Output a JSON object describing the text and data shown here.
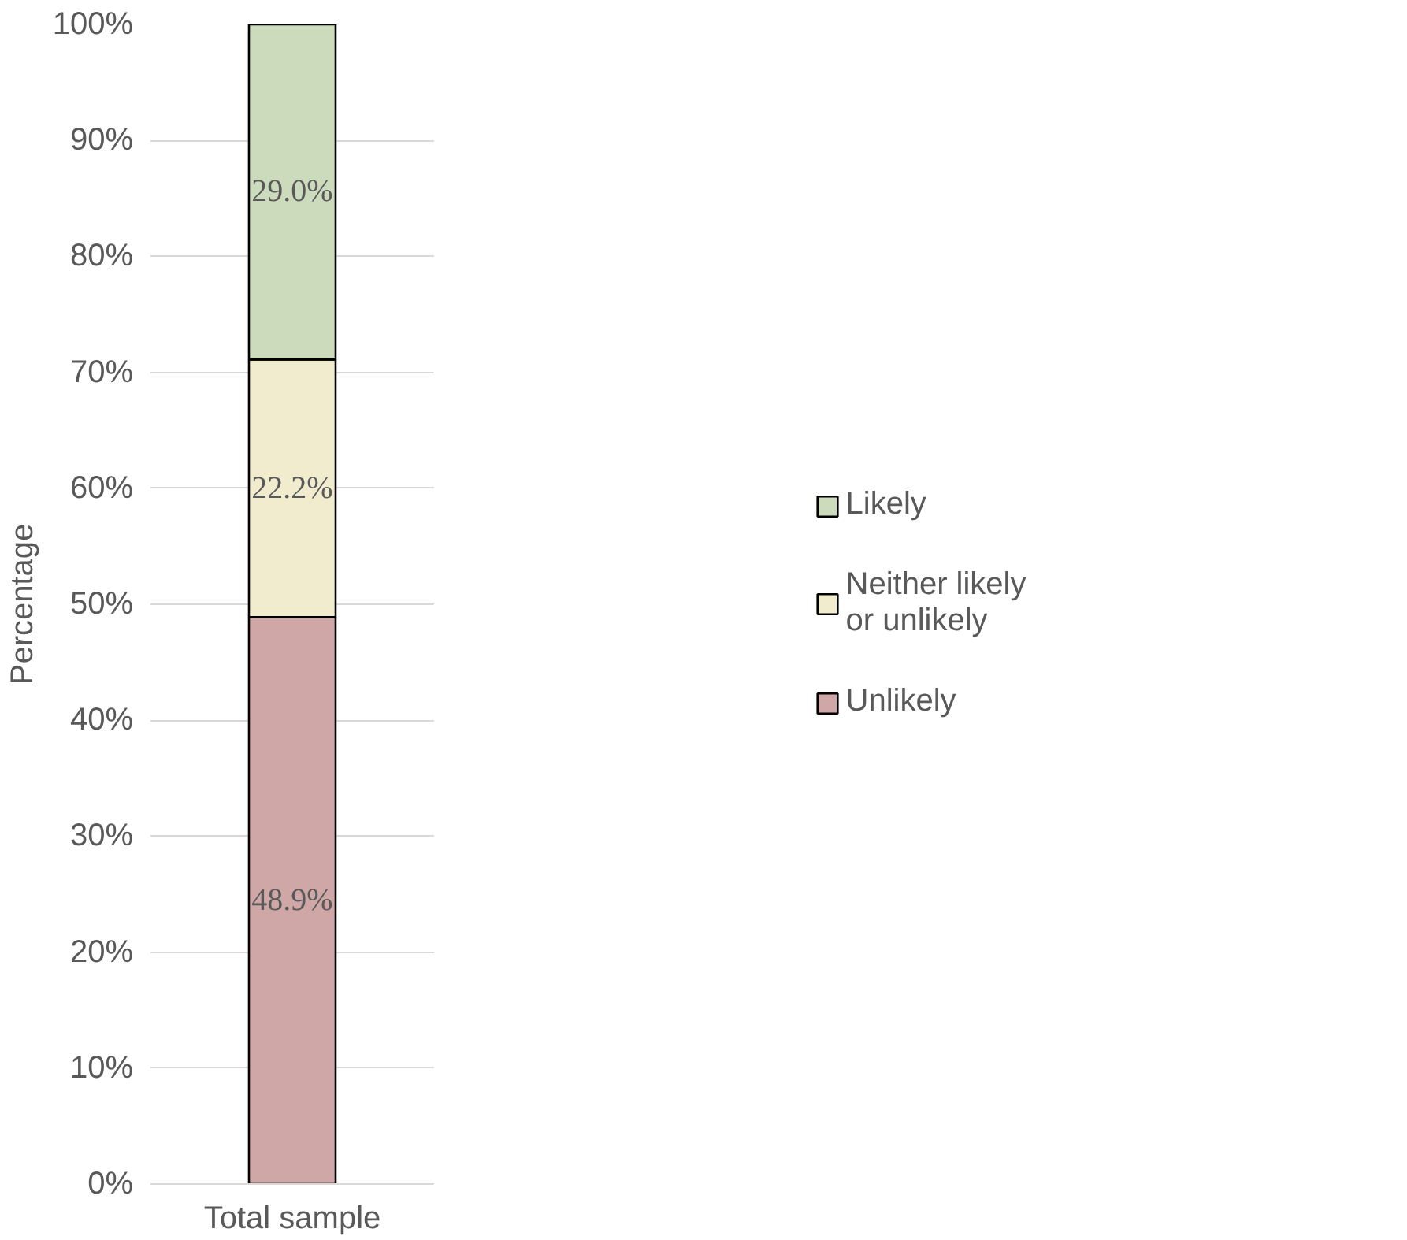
{
  "chart_data": {
    "type": "bar",
    "stacked": true,
    "ylabel": "Percentage",
    "categories": [
      "Total sample"
    ],
    "series": [
      {
        "name": "Unlikely",
        "color": "#d0a7a7",
        "values": [
          48.9
        ],
        "value_labels": [
          "48.9%"
        ]
      },
      {
        "name": "Neither likely or unlikely",
        "color": "#f2ecce",
        "values": [
          22.2
        ],
        "value_labels": [
          "22.2%"
        ]
      },
      {
        "name": "Likely",
        "color": "#cddbbd",
        "values": [
          29.0
        ],
        "value_labels": [
          "29.0%"
        ]
      }
    ],
    "ylim": [
      0,
      100
    ],
    "yticks": [
      {
        "value": 0,
        "label": "0%"
      },
      {
        "value": 10,
        "label": "10%"
      },
      {
        "value": 20,
        "label": "20%"
      },
      {
        "value": 30,
        "label": "30%"
      },
      {
        "value": 40,
        "label": "40%"
      },
      {
        "value": 50,
        "label": "50%"
      },
      {
        "value": 60,
        "label": "60%"
      },
      {
        "value": 70,
        "label": "70%"
      },
      {
        "value": 80,
        "label": "80%"
      },
      {
        "value": 90,
        "label": "90%"
      },
      {
        "value": 100,
        "label": "100%"
      }
    ],
    "grid": "y",
    "legend": "right"
  }
}
